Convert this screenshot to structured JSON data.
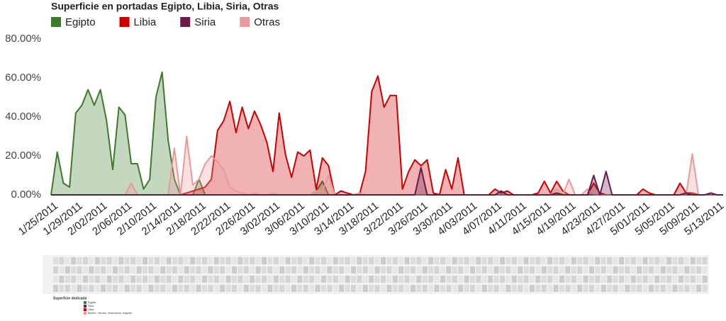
{
  "chart_data": {
    "type": "area",
    "title": "Superficie en portadas Egipto, Libia, Siria, Otras",
    "categories": [
      "1/25/2011",
      null,
      null,
      null,
      "1/29/2011",
      null,
      null,
      null,
      "2/02/2011",
      null,
      null,
      null,
      "2/06/2011",
      null,
      null,
      null,
      "2/10/2011",
      null,
      null,
      null,
      "2/14/2011",
      null,
      null,
      null,
      "2/18/2011",
      null,
      null,
      null,
      "2/22/2011",
      null,
      null,
      null,
      "2/26/2011",
      null,
      null,
      null,
      "3/02/2011",
      null,
      null,
      null,
      "3/06/2011",
      null,
      null,
      null,
      "3/10/2011",
      null,
      null,
      null,
      "3/14/2011",
      null,
      null,
      null,
      "3/18/2011",
      null,
      null,
      null,
      "3/22/2011",
      null,
      null,
      null,
      "3/26/2011",
      null,
      null,
      null,
      "3/30/2011",
      null,
      null,
      null,
      "4/03/2011",
      null,
      null,
      null,
      "4/07/2011",
      null,
      null,
      null,
      "4/11/2011",
      null,
      null,
      null,
      "4/15/2011",
      null,
      null,
      null,
      "4/19/2011",
      null,
      null,
      null,
      "4/23/2011",
      null,
      null,
      null,
      "4/27/2011",
      null,
      null,
      null,
      "5/01/2011",
      null,
      null,
      null,
      "5/05/2011",
      null,
      null,
      null,
      "5/09/2011",
      null,
      null,
      null,
      "5/13/2011",
      null
    ],
    "series": [
      {
        "name": "Egipto",
        "color": "#3d7a2a",
        "values": [
          0,
          22,
          6,
          4,
          42,
          46,
          54,
          46,
          54,
          38,
          13,
          45,
          41,
          16,
          16,
          3,
          8,
          50,
          63,
          28,
          8,
          0,
          0,
          0,
          8,
          0,
          0,
          0,
          0,
          0,
          0,
          0,
          0,
          0,
          0,
          0,
          0,
          0,
          0,
          0,
          0,
          0,
          0,
          2,
          7,
          0,
          0,
          0,
          0,
          0,
          0,
          0,
          0,
          0,
          0,
          0,
          0,
          0,
          0,
          0,
          0,
          0,
          0,
          0,
          0,
          0,
          0,
          0,
          0,
          0,
          0,
          0,
          0,
          0,
          0,
          0,
          0,
          0,
          0,
          0,
          0,
          0,
          0,
          0,
          0,
          0,
          0,
          0,
          0,
          0,
          0,
          0,
          0,
          0,
          0,
          0,
          0,
          0,
          0,
          0,
          0,
          0,
          0,
          0,
          0,
          0,
          0,
          0,
          0,
          0
        ]
      },
      {
        "name": "Libia",
        "color": "#cc0000",
        "values": [
          0,
          0,
          0,
          0,
          0,
          0,
          0,
          0,
          0,
          0,
          0,
          0,
          0,
          0,
          0,
          0,
          0,
          0,
          0,
          0,
          0,
          0,
          1,
          2,
          3,
          4,
          8,
          33,
          38,
          48,
          32,
          45,
          34,
          43,
          36,
          27,
          12,
          42,
          21,
          9,
          22,
          20,
          23,
          3,
          19,
          15,
          0,
          2,
          1,
          0,
          0,
          12,
          53,
          61,
          45,
          51,
          51,
          3,
          12,
          18,
          15,
          18,
          1,
          0,
          13,
          3,
          19,
          0,
          0,
          0,
          0,
          0,
          3,
          1,
          2,
          0,
          0,
          0,
          0,
          1,
          7,
          1,
          7,
          2,
          0,
          0,
          0,
          0,
          6,
          1,
          0,
          0,
          0,
          0,
          0,
          0,
          3,
          1,
          0,
          0,
          0,
          0,
          6,
          1,
          1,
          0,
          0,
          0,
          0,
          0
        ]
      },
      {
        "name": "Siria",
        "color": "#6b1a4a",
        "values": [
          0,
          0,
          0,
          0,
          0,
          0,
          0,
          0,
          0,
          0,
          0,
          0,
          0,
          0,
          0,
          0,
          0,
          0,
          0,
          0,
          0,
          0,
          0,
          0,
          0,
          0,
          0,
          0,
          0,
          0,
          0,
          0,
          0,
          0,
          0,
          0,
          0,
          0,
          0,
          0,
          0,
          0,
          0,
          0,
          0,
          0,
          0,
          0,
          0,
          0,
          0,
          0,
          0,
          0,
          0,
          0,
          0,
          0,
          0,
          0,
          14,
          0,
          0,
          0,
          0,
          0,
          0,
          0,
          0,
          0,
          0,
          0,
          0,
          2,
          0,
          0,
          0,
          0,
          0,
          0,
          0,
          0,
          1,
          0,
          0,
          0,
          0,
          0,
          10,
          0,
          12,
          0,
          0,
          0,
          0,
          0,
          0,
          0,
          0,
          0,
          0,
          0,
          0,
          1,
          0,
          0,
          0,
          1,
          0,
          0
        ]
      },
      {
        "name": "Otras",
        "color": "#e89a9a",
        "values": [
          0,
          0,
          0,
          0,
          0,
          0,
          0,
          0,
          0,
          0,
          0,
          0,
          0,
          6,
          0,
          0,
          0,
          0,
          0,
          0,
          24,
          0,
          30,
          5,
          8,
          16,
          20,
          17,
          13,
          4,
          2,
          1,
          0,
          1,
          0,
          0,
          1,
          0,
          0,
          0,
          0,
          0,
          0,
          2,
          2,
          10,
          0,
          0,
          0,
          0,
          1,
          0,
          0,
          0,
          0,
          0,
          0,
          0,
          0,
          0,
          0,
          0,
          0,
          0,
          0,
          0,
          0,
          0,
          0,
          0,
          0,
          0,
          0,
          0,
          0,
          0,
          0,
          0,
          0,
          0,
          0,
          0,
          3,
          0,
          8,
          0,
          0,
          3,
          0,
          0,
          0,
          0,
          0,
          0,
          0,
          0,
          0,
          0,
          0,
          0,
          0,
          0,
          0,
          0,
          21,
          0,
          0,
          0,
          0,
          0
        ]
      }
    ],
    "ylim": [
      0,
      80
    ],
    "yticks": [
      {
        "value": 0,
        "label": "0.00%"
      },
      {
        "value": 20,
        "label": "20.00%"
      },
      {
        "value": 40,
        "label": "40.00%"
      },
      {
        "value": 60,
        "label": "60.00%"
      },
      {
        "value": 80,
        "label": "80.00%"
      }
    ],
    "grid": false
  },
  "thumbnail": {
    "legend_title": "Superficie dedicada",
    "legend": [
      "Egipto",
      "Siria",
      "Libia",
      "Barein, Yemen, Marruecos, Argelia"
    ]
  }
}
